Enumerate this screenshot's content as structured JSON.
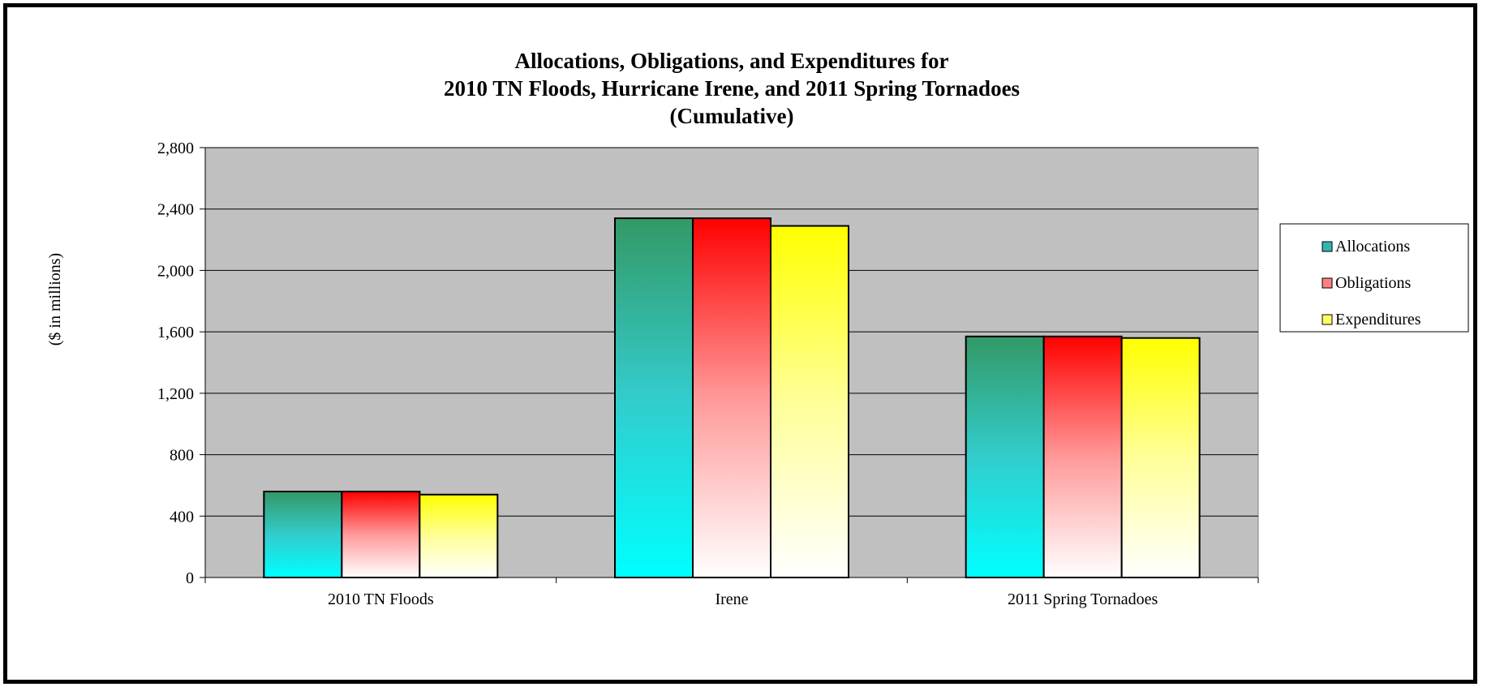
{
  "chart_data": {
    "type": "bar",
    "title": [
      "Allocations, Obligations, and Expenditures for",
      "2010 TN Floods, Hurricane Irene, and 2011 Spring Tornadoes",
      "(Cumulative)"
    ],
    "ylabel": "($ in millions)",
    "xlabel": "",
    "categories": [
      "2010 TN Floods",
      "Irene",
      "2011 Spring Tornadoes"
    ],
    "ylim": [
      0,
      2800
    ],
    "yticks": [
      0,
      400,
      800,
      1200,
      1600,
      2000,
      2400,
      2800
    ],
    "ytick_labels": [
      "0",
      "400",
      "800",
      "1,200",
      "1,600",
      "2,000",
      "2,400",
      "2,800"
    ],
    "grid": true,
    "legend_position": "right",
    "plot_background": "#C0C0C0",
    "series": [
      {
        "name": "Allocations",
        "values": [
          560,
          2340,
          1570
        ],
        "color_top": "#339966",
        "color_mid": "#33CCCC",
        "color_bottom": "#00FFFF",
        "legend_swatch": "#33B3B3"
      },
      {
        "name": "Obligations",
        "values": [
          560,
          2340,
          1570
        ],
        "color_top": "#FF0000",
        "color_mid": "#FF9999",
        "color_bottom": "#FFFFFF",
        "legend_swatch": "#FF8080"
      },
      {
        "name": "Expenditures",
        "values": [
          540,
          2290,
          1560
        ],
        "color_top": "#FFFF00",
        "color_mid": "#FFFF99",
        "color_bottom": "#FFFFFF",
        "legend_swatch": "#FFFF66"
      }
    ]
  }
}
